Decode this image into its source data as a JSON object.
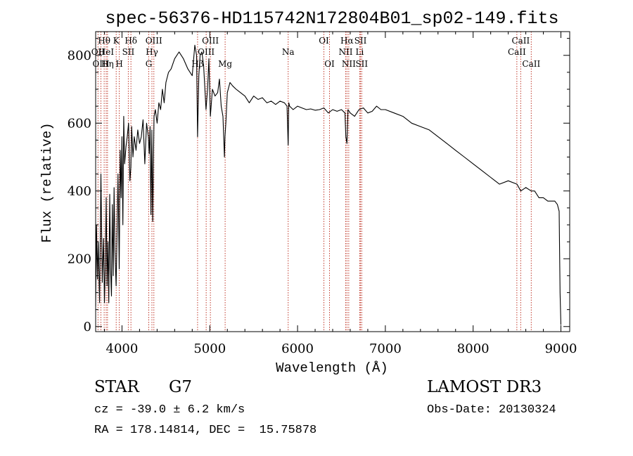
{
  "chart_data": {
    "type": "line",
    "title": "spec-56376-HD115742N172804B01_sp02-149.fits",
    "xlabel": "Wavelength (Å)",
    "ylabel": "Flux (relative)",
    "xlim": [
      3700,
      9100
    ],
    "ylim": [
      -15,
      870
    ],
    "x_ticks": [
      4000,
      5000,
      6000,
      7000,
      8000,
      9000
    ],
    "y_ticks": [
      0,
      200,
      400,
      600,
      800
    ],
    "grid": false,
    "series": [
      {
        "name": "flux",
        "x": [
          3700,
          3710,
          3720,
          3730,
          3745,
          3760,
          3775,
          3790,
          3800,
          3810,
          3820,
          3830,
          3840,
          3850,
          3860,
          3870,
          3880,
          3890,
          3900,
          3910,
          3920,
          3933,
          3945,
          3955,
          3968,
          3980,
          3990,
          4000,
          4010,
          4020,
          4030,
          4045,
          4060,
          4075,
          4090,
          4101,
          4110,
          4125,
          4140,
          4160,
          4180,
          4200,
          4220,
          4240,
          4260,
          4280,
          4300,
          4310,
          4320,
          4330,
          4340,
          4350,
          4365,
          4380,
          4400,
          4420,
          4440,
          4460,
          4480,
          4500,
          4530,
          4560,
          4600,
          4650,
          4700,
          4750,
          4800,
          4830,
          4850,
          4861,
          4875,
          4890,
          4910,
          4930,
          4957,
          4975,
          4990,
          5007,
          5030,
          5060,
          5090,
          5110,
          5130,
          5150,
          5167,
          5173,
          5183,
          5200,
          5230,
          5260,
          5300,
          5350,
          5400,
          5450,
          5500,
          5550,
          5600,
          5650,
          5700,
          5750,
          5800,
          5850,
          5880,
          5893,
          5900,
          5910,
          5950,
          6000,
          6050,
          6100,
          6150,
          6200,
          6250,
          6300,
          6350,
          6400,
          6450,
          6500,
          6540,
          6550,
          6563,
          6575,
          6600,
          6650,
          6700,
          6750,
          6800,
          6850,
          6900,
          6950,
          7000,
          7100,
          7200,
          7300,
          7400,
          7500,
          7600,
          7700,
          7800,
          7900,
          8000,
          8100,
          8200,
          8300,
          8400,
          8500,
          8542,
          8600,
          8662,
          8700,
          8750,
          8800,
          8850,
          8900,
          8930,
          8960,
          8980,
          8990,
          9000
        ],
        "values": [
          60,
          300,
          140,
          250,
          70,
          450,
          130,
          260,
          70,
          180,
          380,
          120,
          250,
          70,
          390,
          170,
          90,
          360,
          150,
          410,
          220,
          120,
          300,
          450,
          170,
          520,
          380,
          560,
          300,
          620,
          480,
          530,
          560,
          600,
          430,
          470,
          590,
          500,
          560,
          520,
          580,
          540,
          560,
          610,
          480,
          600,
          560,
          510,
          590,
          330,
          580,
          310,
          620,
          640,
          600,
          660,
          640,
          700,
          660,
          720,
          750,
          760,
          790,
          810,
          790,
          760,
          740,
          830,
          800,
          560,
          740,
          800,
          810,
          770,
          640,
          700,
          790,
          620,
          700,
          680,
          690,
          730,
          650,
          620,
          500,
          560,
          600,
          690,
          720,
          710,
          700,
          690,
          680,
          660,
          680,
          670,
          675,
          660,
          665,
          655,
          665,
          660,
          650,
          535,
          660,
          650,
          640,
          650,
          645,
          640,
          642,
          638,
          640,
          645,
          630,
          640,
          635,
          640,
          630,
          560,
          540,
          640,
          630,
          620,
          640,
          645,
          630,
          635,
          650,
          640,
          640,
          630,
          620,
          600,
          590,
          580,
          560,
          540,
          520,
          500,
          480,
          460,
          440,
          420,
          430,
          420,
          400,
          410,
          400,
          400,
          380,
          380,
          370,
          370,
          370,
          360,
          340,
          100,
          5
        ]
      }
    ],
    "line_annotations": [
      {
        "label": "Hθ",
        "x": 3797,
        "row": 1
      },
      {
        "label": "OII",
        "x": 3727,
        "row": 2
      },
      {
        "label": "HeI",
        "x": 3820,
        "row": 2
      },
      {
        "label": "OIII",
        "x": 3760,
        "row": 3
      },
      {
        "label": "Hη",
        "x": 3835,
        "row": 3
      },
      {
        "label": "K",
        "x": 3934,
        "row": 1
      },
      {
        "label": "SII",
        "x": 4072,
        "row": 2
      },
      {
        "label": "H",
        "x": 3969,
        "row": 3
      },
      {
        "label": "Hδ",
        "x": 4102,
        "row": 1
      },
      {
        "label": "OIII",
        "x": 4363,
        "row": 1
      },
      {
        "label": "Hγ",
        "x": 4341,
        "row": 2
      },
      {
        "label": "G",
        "x": 4305,
        "row": 3
      },
      {
        "label": "OIII",
        "x": 5007,
        "row": 1
      },
      {
        "label": "OIII",
        "x": 4959,
        "row": 2
      },
      {
        "label": "Hβ",
        "x": 4861,
        "row": 3
      },
      {
        "label": "Mg",
        "x": 5175,
        "row": 3
      },
      {
        "label": "Na",
        "x": 5893,
        "row": 2
      },
      {
        "label": "OI",
        "x": 6300,
        "row": 1
      },
      {
        "label": "OI",
        "x": 6364,
        "row": 3
      },
      {
        "label": "Hα",
        "x": 6563,
        "row": 1
      },
      {
        "label": "SII",
        "x": 6717,
        "row": 1
      },
      {
        "label": "NII",
        "x": 6548,
        "row": 2
      },
      {
        "label": "Li",
        "x": 6708,
        "row": 2
      },
      {
        "label": "NII",
        "x": 6583,
        "row": 3
      },
      {
        "label": "SII",
        "x": 6731,
        "row": 3
      },
      {
        "label": "CaII",
        "x": 8542,
        "row": 1
      },
      {
        "label": "CaII",
        "x": 8498,
        "row": 2
      },
      {
        "label": "CaII",
        "x": 8662,
        "row": 3
      }
    ]
  },
  "info": {
    "class_label": "STAR",
    "subclass_label": "G7",
    "cz_text": "cz = -39.0 ± 6.2 km/s",
    "radec_text": "RA = 178.14814, DEC =  15.75878",
    "survey_label": "LAMOST DR3",
    "obs_date_text": "Obs-Date: 20130324"
  }
}
